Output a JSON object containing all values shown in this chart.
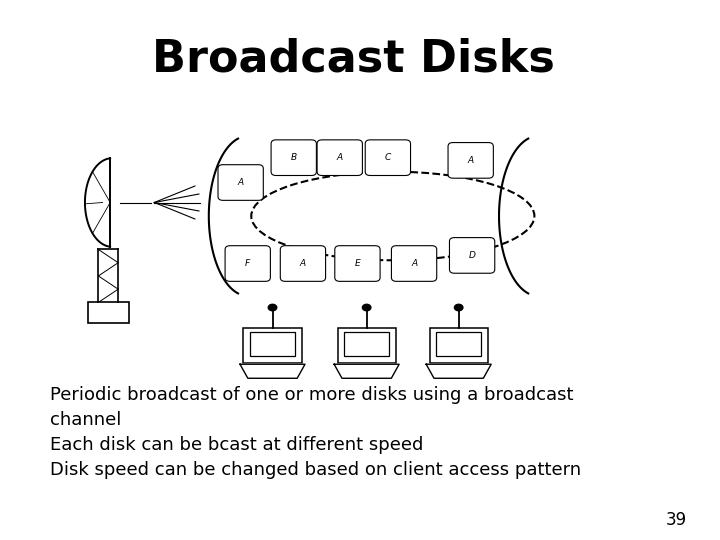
{
  "title": "Broadcast Disks",
  "title_fontsize": 32,
  "body_text": "Periodic broadcast of one or more disks using a broadcast\nchannel\nEach disk can be bcast at different speed\nDisk speed can be changed based on client access pattern",
  "body_fontsize": 13,
  "page_number": "39",
  "background_color": "#ffffff"
}
